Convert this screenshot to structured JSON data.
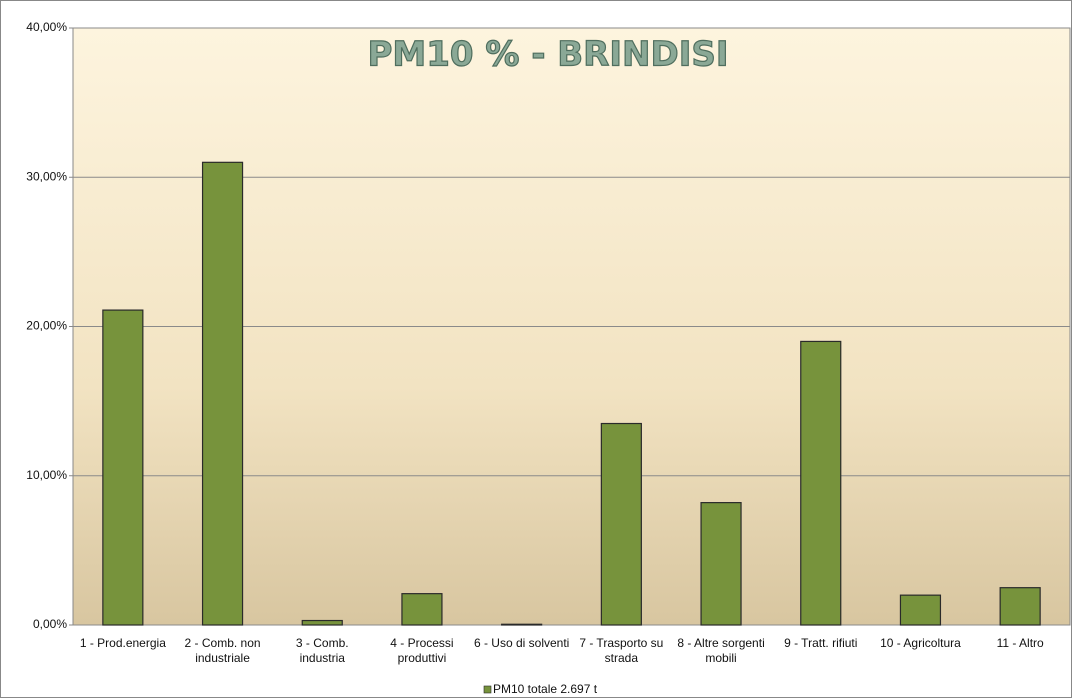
{
  "chart_data": {
    "type": "bar",
    "title": "PM10 %  - BRINDISI",
    "categories": [
      "1 - Prod.energia",
      "2 - Comb. non industriale",
      "3 - Comb. industria",
      "4 - Processi produttivi",
      "6 - Uso di solventi",
      "7 - Trasporto su strada",
      "8 - Altre sorgenti mobili",
      "9 - Tratt. rifiuti",
      "10 - Agricoltura",
      "11 - Altro"
    ],
    "series": [
      {
        "name": "PM10 totale 2.697 t",
        "color": "#77933c",
        "values": [
          21.1,
          31.0,
          0.3,
          2.1,
          0.05,
          13.5,
          8.2,
          19.0,
          2.0,
          2.5
        ]
      }
    ],
    "ylim": [
      0,
      40
    ],
    "yticks": [
      {
        "value": 0,
        "label": "0,00%"
      },
      {
        "value": 10,
        "label": "10,00%"
      },
      {
        "value": 20,
        "label": "20,00%"
      },
      {
        "value": 30,
        "label": "30,00%"
      },
      {
        "value": 40,
        "label": "40,00%"
      }
    ],
    "grid": true,
    "legend": "bottom"
  }
}
